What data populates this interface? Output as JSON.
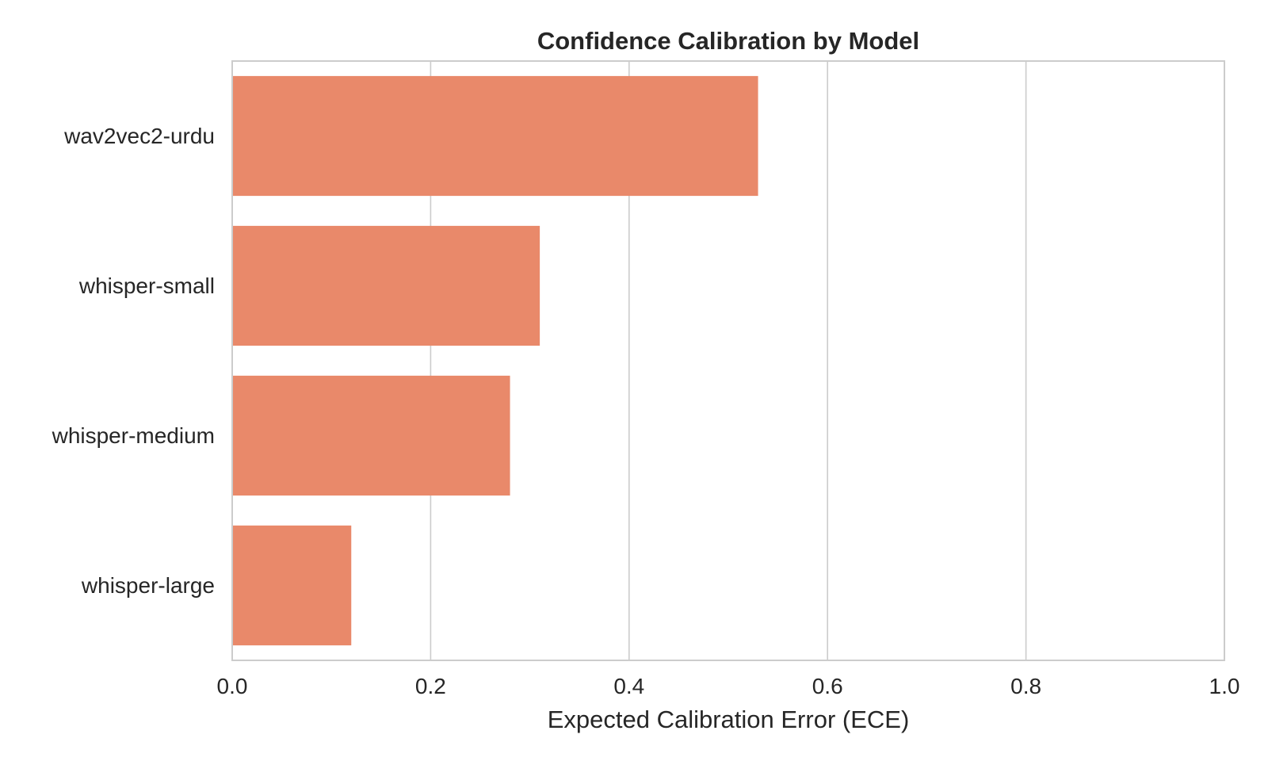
{
  "chart_data": {
    "type": "bar",
    "orientation": "horizontal",
    "title": "Confidence Calibration by Model",
    "xlabel": "Expected Calibration Error (ECE)",
    "ylabel": "",
    "categories": [
      "wav2vec2-urdu",
      "whisper-small",
      "whisper-medium",
      "whisper-large"
    ],
    "values": [
      0.53,
      0.31,
      0.28,
      0.12
    ],
    "xlim": [
      0,
      1.0
    ],
    "xticks": [
      0.0,
      0.2,
      0.4,
      0.6,
      0.8,
      1.0
    ],
    "xtick_labels": [
      "0.0",
      "0.2",
      "0.4",
      "0.6",
      "0.8",
      "1.0"
    ],
    "grid": "vertical",
    "bar_color": "#e9896a",
    "grid_color": "#cccccc",
    "spine_color": "#cccccc",
    "text_color": "#262626"
  }
}
